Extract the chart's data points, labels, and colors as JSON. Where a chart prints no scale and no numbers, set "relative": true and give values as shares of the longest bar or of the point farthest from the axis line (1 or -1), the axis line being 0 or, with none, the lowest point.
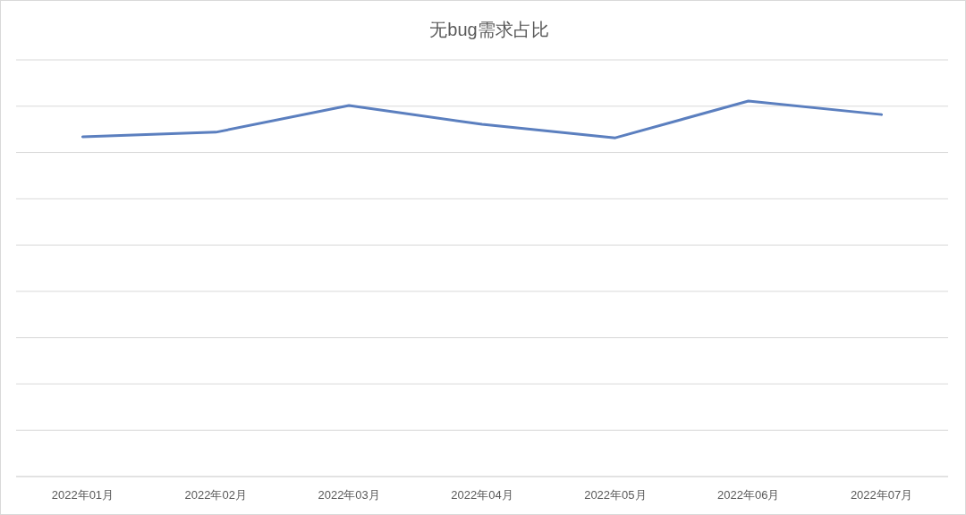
{
  "chart_data": {
    "type": "line",
    "title": "无bug需求占比",
    "relative": true,
    "grid": "y",
    "color": "#5b7fbf",
    "categories": [
      "2022年01月",
      "2022年02月",
      "2022年03月",
      "2022年04月",
      "2022年05月",
      "2022年06月",
      "2022年07月"
    ],
    "values": [
      0.905,
      0.917,
      0.988,
      0.938,
      0.902,
      1,
      0.964
    ]
  }
}
